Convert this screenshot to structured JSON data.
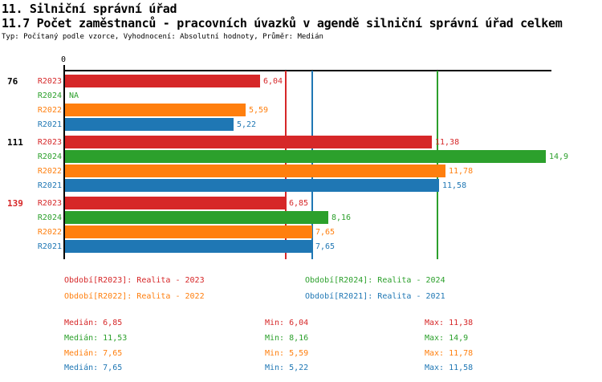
{
  "header": {
    "title": "11. Silniční správní úřad",
    "subtitle": "11.7 Počet zaměstnanců - pracovních úvazků v agendě silniční správní úřad celkem",
    "meta": "Typ: Počítaný podle vzorce, Vyhodnocení: Absolutní hodnoty, Průměr: Medián"
  },
  "chart_data": {
    "type": "bar",
    "orientation": "horizontal",
    "x_axis": {
      "origin_label": "0",
      "min": 0,
      "max": 15.1,
      "gridlines": false
    },
    "series": [
      {
        "id": "R2023",
        "label": "R2023",
        "name": "Realita - 2023",
        "color": "#d62728"
      },
      {
        "id": "R2024",
        "label": "R2024",
        "name": "Realita - 2024",
        "color": "#2ca02c"
      },
      {
        "id": "R2022",
        "label": "R2022",
        "name": "Realita - 2022",
        "color": "#ff7f0e"
      },
      {
        "id": "R2021",
        "label": "R2021",
        "name": "Realita - 2021",
        "color": "#1f77b4"
      }
    ],
    "row_order": [
      "R2023",
      "R2024",
      "R2022",
      "R2021"
    ],
    "groups": [
      {
        "label": "76",
        "label_color": "#000000",
        "values": {
          "R2023": 6.04,
          "R2024": null,
          "R2022": 5.59,
          "R2021": 5.22
        },
        "value_labels": {
          "R2023": "6,04",
          "R2024": "NA",
          "R2022": "5,59",
          "R2021": "5,22"
        }
      },
      {
        "label": "111",
        "label_color": "#000000",
        "values": {
          "R2023": 11.38,
          "R2024": 14.9,
          "R2022": 11.78,
          "R2021": 11.58
        },
        "value_labels": {
          "R2023": "11,38",
          "R2024": "14,9",
          "R2022": "11,78",
          "R2021": "11,58"
        }
      },
      {
        "label": "139",
        "label_color": "#d62728",
        "values": {
          "R2023": 6.85,
          "R2024": 8.16,
          "R2022": 7.65,
          "R2021": 7.65
        },
        "value_labels": {
          "R2023": "6,85",
          "R2024": "8,16",
          "R2022": "7,65",
          "R2021": "7,65"
        }
      }
    ],
    "median_lines": [
      {
        "series": "R2023",
        "value": 6.85,
        "color": "#d62728"
      },
      {
        "series": "R2024",
        "value": 11.53,
        "color": "#2ca02c"
      },
      {
        "series": "R2022",
        "value": 7.65,
        "color": "#ff7f0e"
      },
      {
        "series": "R2021",
        "value": 7.65,
        "color": "#1f77b4"
      }
    ]
  },
  "legend": [
    {
      "label": "Období[R2023]: Realita - 2023",
      "color": "#d62728"
    },
    {
      "label": "Období[R2024]: Realita - 2024",
      "color": "#2ca02c"
    },
    {
      "label": "Období[R2022]: Realita - 2022",
      "color": "#ff7f0e"
    },
    {
      "label": "Období[R2021]: Realita - 2021",
      "color": "#1f77b4"
    }
  ],
  "stats": [
    {
      "color": "#d62728",
      "median": "Medián: 6,85",
      "min": "Min: 6,04",
      "max": "Max: 11,38"
    },
    {
      "color": "#2ca02c",
      "median": "Medián: 11,53",
      "min": "Min: 8,16",
      "max": "Max: 14,9"
    },
    {
      "color": "#ff7f0e",
      "median": "Medián: 7,65",
      "min": "Min: 5,59",
      "max": "Max: 11,78"
    },
    {
      "color": "#1f77b4",
      "median": "Medián: 7,65",
      "min": "Min: 5,22",
      "max": "Max: 11,58"
    }
  ]
}
